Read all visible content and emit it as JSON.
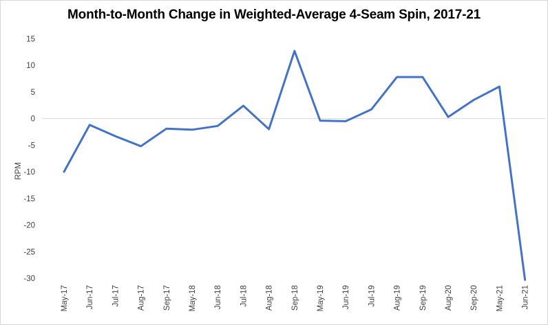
{
  "chart_data": {
    "type": "line",
    "title": "Month-to-Month Change in Weighted-Average 4-Seam Spin, 2017-21",
    "ylabel": "RPM",
    "xlabel": "",
    "categories": [
      "May-17",
      "Jun-17",
      "Jul-17",
      "Aug-17",
      "Sep-17",
      "May-18",
      "Jun-18",
      "Jul-18",
      "Aug-18",
      "Sep-18",
      "May-19",
      "Jun-19",
      "Jul-19",
      "Aug-19",
      "Sep-19",
      "Aug-20",
      "Sep-20",
      "May-21",
      "Jun-21"
    ],
    "values": [
      -10,
      -1.2,
      -3.3,
      -5.2,
      -1.9,
      -2.1,
      -1.4,
      2.4,
      -2,
      12.7,
      -0.4,
      -0.5,
      1.7,
      7.8,
      7.8,
      0.3,
      3.5,
      6,
      -30.3
    ],
    "yticks": [
      15,
      10,
      5,
      0,
      -5,
      -10,
      -15,
      -20,
      -25,
      -30
    ],
    "ylim": [
      -30,
      15
    ],
    "grid": "zero-line-only",
    "legend": "none",
    "line_color": "#4472C4",
    "gridline_color": "#D9D9D9",
    "tick_text_color": "#3F3F3F",
    "title_color": "#000000"
  }
}
